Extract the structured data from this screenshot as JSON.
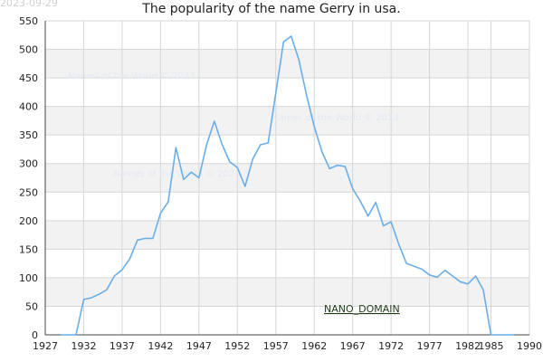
{
  "header": {
    "stamp": "2023-09-29",
    "title": "The popularity of the name Gerry in usa."
  },
  "watermarks": [
    "Names of the World © 2023",
    "Names of the World © 2023",
    "Names of the World © 2023"
  ],
  "footer_label": "NANO_DOMAIN",
  "colors": {
    "line": "#6aaee8",
    "band": "#f2f2f2",
    "grid": "#d6d6d6",
    "axis": "#444444"
  },
  "chart_data": {
    "type": "line",
    "title": "The popularity of the name Gerry in usa.",
    "xlabel": "",
    "ylabel": "",
    "xlim": [
      1927,
      1990
    ],
    "ylim": [
      0,
      550
    ],
    "x_ticks": [
      1927,
      1932,
      1937,
      1942,
      1947,
      1952,
      1957,
      1962,
      1967,
      1972,
      1977,
      1982,
      1985,
      1990
    ],
    "y_ticks": [
      0,
      50,
      100,
      150,
      200,
      250,
      300,
      350,
      400,
      450,
      500,
      550
    ],
    "grid": true,
    "legend": "none",
    "series": [
      {
        "x": [
          1929,
          1930,
          1931,
          1932,
          1933,
          1934,
          1935,
          1936,
          1937,
          1938,
          1939,
          1940,
          1941,
          1942,
          1943,
          1944,
          1945,
          1946,
          1947,
          1948,
          1949,
          1950,
          1951,
          1952,
          1953,
          1954,
          1955,
          1956,
          1957,
          1958,
          1959,
          1960,
          1961,
          1962,
          1963,
          1964,
          1965,
          1966,
          1967,
          1968,
          1969,
          1970,
          1971,
          1972,
          1973,
          1974,
          1975,
          1976,
          1977,
          1978,
          1979,
          1980,
          1981,
          1982,
          1983,
          1984,
          1985,
          1986,
          1987,
          1988
        ],
        "values": [
          0,
          0,
          0,
          62,
          65,
          71,
          79,
          103,
          114,
          133,
          166,
          169,
          169,
          213,
          233,
          328,
          272,
          285,
          275,
          333,
          374,
          334,
          303,
          293,
          260,
          308,
          333,
          336,
          424,
          513,
          523,
          482,
          420,
          365,
          321,
          291,
          297,
          295,
          256,
          234,
          208,
          232,
          191,
          198,
          159,
          125,
          120,
          115,
          105,
          101,
          113,
          103,
          93,
          89,
          103,
          79,
          0,
          0,
          0,
          0
        ]
      }
    ]
  }
}
